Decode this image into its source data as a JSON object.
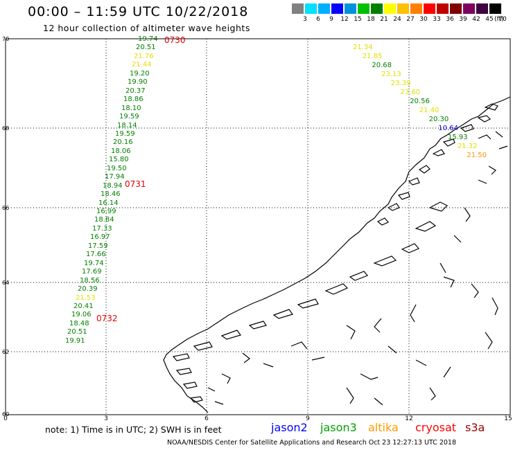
{
  "header": {
    "title": "00:00 – 11:59 UTC 10/22/2018",
    "subtitle": "12 hour collection of altimeter wave heights"
  },
  "color_scale": {
    "colors": [
      "#808080",
      "#00e0ff",
      "#00b0ff",
      "#0000ff",
      "#0090e0",
      "#00c000",
      "#008000",
      "#ffff00",
      "#ffc000",
      "#ff8000",
      "#ff0000",
      "#c00000",
      "#800000",
      "#800060",
      "#400040",
      "#000000"
    ],
    "ticks": [
      "3",
      "6",
      "9",
      "12",
      "15",
      "18",
      "21",
      "24",
      "27",
      "30",
      "33",
      "36",
      "39",
      "42",
      "45",
      "70"
    ],
    "unit": "(ft)"
  },
  "map": {
    "lat_labels": [
      "70",
      "68",
      "66",
      "64",
      "62",
      "60"
    ],
    "lon_labels": [
      "0",
      "3",
      "6",
      "9",
      "12",
      "15"
    ]
  },
  "track_times": [
    "0730",
    "0731",
    "0732"
  ],
  "track_west": [
    {
      "v": "19.74",
      "c": "#008000"
    },
    {
      "v": "20.51",
      "c": "#008000"
    },
    {
      "v": "21.76",
      "c": "#e0e000"
    },
    {
      "v": "21.44",
      "c": "#e0e000"
    },
    {
      "v": "19.20",
      "c": "#008000"
    },
    {
      "v": "19.90",
      "c": "#008000"
    },
    {
      "v": "20.37",
      "c": "#008000"
    },
    {
      "v": "18.86",
      "c": "#008000"
    },
    {
      "v": "18.10",
      "c": "#008000"
    },
    {
      "v": "19.59",
      "c": "#008000"
    },
    {
      "v": "18.14",
      "c": "#008000"
    },
    {
      "v": "19.59",
      "c": "#008000"
    },
    {
      "v": "20.16",
      "c": "#008000"
    },
    {
      "v": "18.06",
      "c": "#008000"
    },
    {
      "v": "15.80",
      "c": "#008000"
    },
    {
      "v": "19.50",
      "c": "#008000"
    },
    {
      "v": "17.94",
      "c": "#008000"
    },
    {
      "v": "18.94",
      "c": "#008000"
    },
    {
      "v": "18.46",
      "c": "#008000"
    },
    {
      "v": "16.14",
      "c": "#008000"
    },
    {
      "v": "16.99",
      "c": "#008000"
    },
    {
      "v": "18.84",
      "c": "#008000"
    },
    {
      "v": "17.33",
      "c": "#008000"
    },
    {
      "v": "16.97",
      "c": "#008000"
    },
    {
      "v": "17.59",
      "c": "#008000"
    },
    {
      "v": "17.66",
      "c": "#008000"
    },
    {
      "v": "19.74",
      "c": "#008000"
    },
    {
      "v": "17.69",
      "c": "#008000"
    },
    {
      "v": "18.56",
      "c": "#008000"
    },
    {
      "v": "20.39",
      "c": "#008000"
    },
    {
      "v": "21.53",
      "c": "#e0e000"
    },
    {
      "v": "20.41",
      "c": "#008000"
    },
    {
      "v": "19.06",
      "c": "#008000"
    },
    {
      "v": "18.48",
      "c": "#008000"
    },
    {
      "v": "20.51",
      "c": "#008000"
    },
    {
      "v": "19.91",
      "c": "#008000"
    }
  ],
  "track_east": [
    {
      "v": "21.34",
      "c": "#e0e000"
    },
    {
      "v": "21.85",
      "c": "#e0e000"
    },
    {
      "v": "20.68",
      "c": "#008000"
    },
    {
      "v": "23.13",
      "c": "#e0e000"
    },
    {
      "v": "23.39",
      "c": "#e0e000"
    },
    {
      "v": "23.60",
      "c": "#e0e000"
    },
    {
      "v": "20.56",
      "c": "#008000"
    },
    {
      "v": "21.40",
      "c": "#e0e000"
    },
    {
      "v": "20.30",
      "c": "#008000"
    },
    {
      "v": "10.64",
      "c": "#0000d0"
    },
    {
      "v": "15.93",
      "c": "#008000"
    },
    {
      "v": "21.32",
      "c": "#e0e000"
    },
    {
      "v": "21.50",
      "c": "#ff9000"
    }
  ],
  "footer": {
    "note": "note: 1) Time is in UTC; 2) SWH is in feet",
    "satellites": [
      {
        "name": "jason2",
        "color": "#0000ff"
      },
      {
        "name": "jason3",
        "color": "#00a000"
      },
      {
        "name": "altika",
        "color": "#ff9900"
      },
      {
        "name": "cryosat",
        "color": "#ff0000"
      },
      {
        "name": "s3a",
        "color": "#a00000"
      }
    ],
    "credit": "NOAA/NESDIS Center for Satellite Applications and Research    Oct 23 12:27:13 UTC 2018"
  }
}
